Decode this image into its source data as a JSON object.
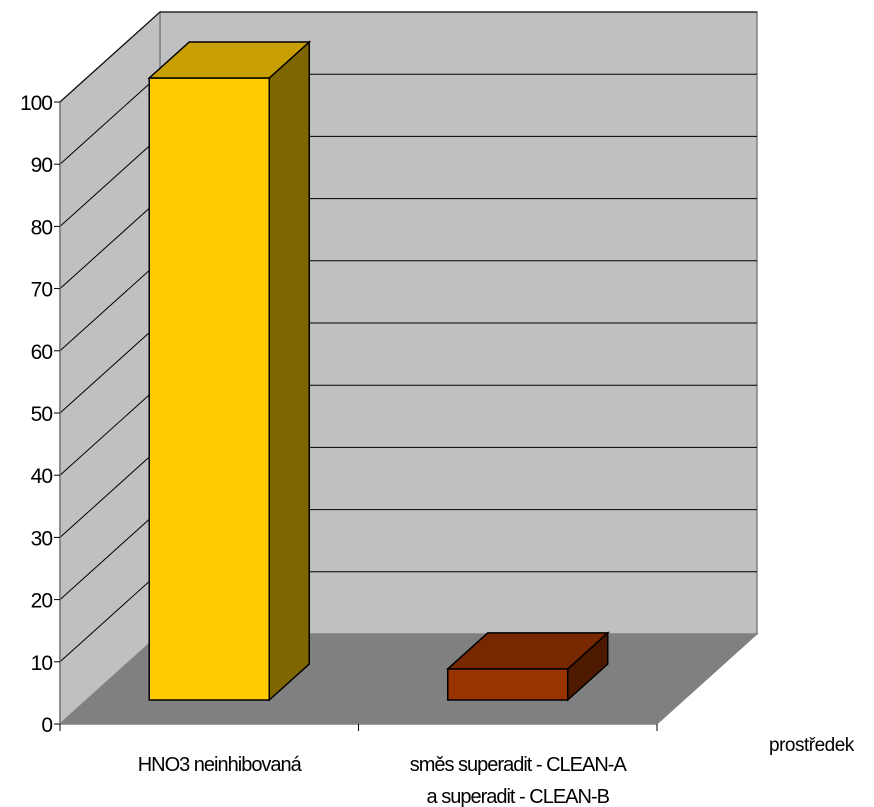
{
  "chart_data": {
    "type": "bar",
    "categories": [
      [
        "HNO3 neinhibovaná"
      ],
      [
        "směs superadit - CLEAN-A",
        "a superadit - CLEAN-B"
      ]
    ],
    "values": [
      100,
      5
    ],
    "xlabel": "prostředek",
    "ylabel": "",
    "ylim": [
      0,
      100
    ],
    "yticks": [
      0,
      10,
      20,
      30,
      40,
      50,
      60,
      70,
      80,
      90,
      100
    ],
    "grid": true,
    "three_d": true,
    "colors": {
      "bars": [
        "#ffcc00",
        "#993300"
      ],
      "wall": "#c0c0c0",
      "floor": "#808080",
      "gridline": "#000000"
    }
  }
}
